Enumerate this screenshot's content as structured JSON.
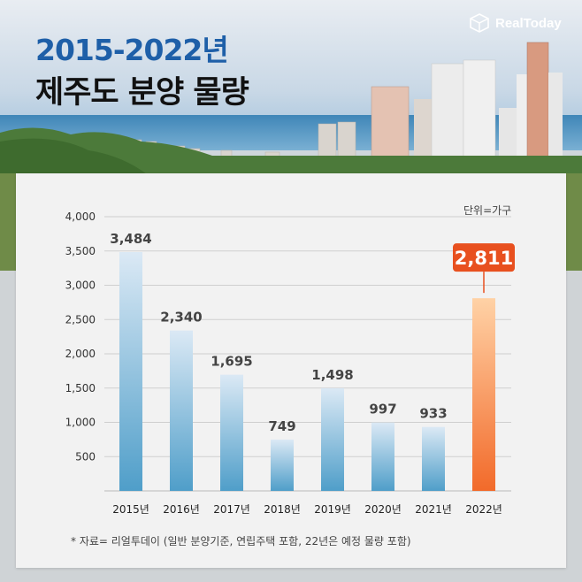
{
  "header": {
    "title_line1": "2015-2022년",
    "title_line2": "제주도 분양 물량",
    "brand": "RealToday",
    "logo_icon": "cube-logo-icon"
  },
  "unit_label": "단위=가구",
  "footnote": "* 자료= 리얼투데이 (일반 분양기준, 연립주택 포함, 22년은 예정 물량 포함)",
  "colors": {
    "bar_blue_top": "#dbe9f5",
    "bar_blue_bottom": "#4f9ec9",
    "bar_orange_top": "#ffd2a6",
    "bar_orange_bottom": "#f26a2a",
    "highlight_badge": "#e8501f",
    "title_blue": "#1e5fa8"
  },
  "chart_data": {
    "type": "bar",
    "categories": [
      "2015년",
      "2016년",
      "2017년",
      "2018년",
      "2019년",
      "2020년",
      "2021년",
      "2022년"
    ],
    "values": [
      3484,
      2340,
      1695,
      749,
      1498,
      997,
      933,
      2811
    ],
    "value_labels": [
      "3,484",
      "2,340",
      "1,695",
      "749",
      "1,498",
      "997",
      "933",
      "2,811"
    ],
    "yticks": [
      500,
      1000,
      1500,
      2000,
      2500,
      3000,
      3500,
      4000
    ],
    "ytick_labels": [
      "500",
      "1,000",
      "1,500",
      "2,000",
      "2,500",
      "3,000",
      "3,500",
      "4,000"
    ],
    "ylim": [
      0,
      4000
    ],
    "grid": true,
    "highlight_index": 7
  }
}
